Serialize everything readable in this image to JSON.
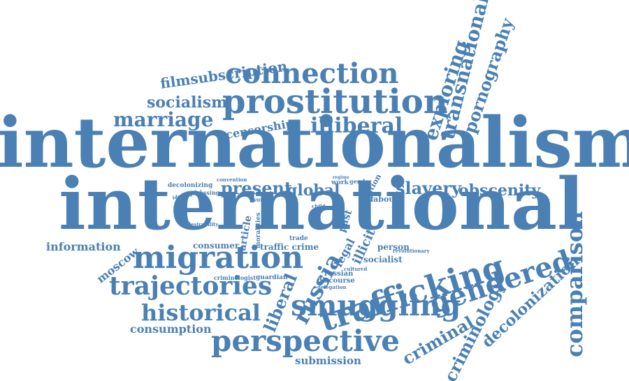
{
  "colors": {
    "word": "#4a80b4",
    "background": "#ffffff"
  },
  "words": [
    "internationalism",
    "international",
    "prostitution",
    "connection",
    "trafficking",
    "migration",
    "smuggling",
    "gendered",
    "perspective",
    "trajectories",
    "comparison",
    "historical",
    "transnational",
    "exploring",
    "illiberal",
    "marriage",
    "pornography",
    "russia",
    "criminal",
    "criminology",
    "decolonization",
    "liberal",
    "slavery",
    "obscenity",
    "present",
    "global",
    "socialism",
    "filmsubscription",
    "information",
    "censorship",
    "consumption",
    "submission",
    "moscow",
    "consumer",
    "traffic crime",
    "article",
    "legal",
    "illicit",
    "past",
    "person",
    "socialist",
    "russian",
    "discourse",
    "labour",
    "nation",
    "decolonizing",
    "guardian",
    "criminologist",
    "work",
    "trade",
    "moralities",
    "woman",
    "convention",
    "gender",
    "ideological",
    "dressing",
    "desirability",
    "cultured",
    "delegation",
    "revolutionary",
    "child",
    "regime",
    "sex",
    "advocacy"
  ]
}
